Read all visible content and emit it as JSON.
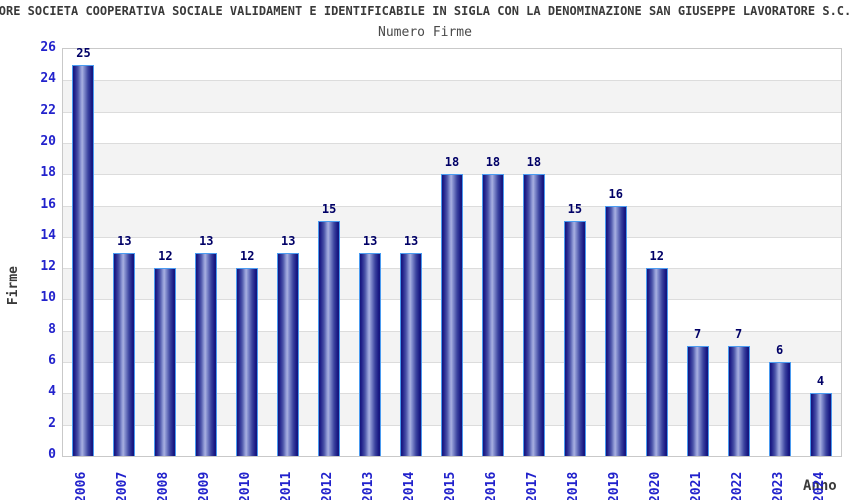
{
  "chart_data": {
    "type": "bar",
    "title": "ATORE SOCIETA COOPERATIVA SOCIALE VALIDAMENT E IDENTIFICABILE IN SIGLA CON LA DENOMINAZIONE SAN GIUSEPPE LAVORATORE S.C.S.",
    "subtitle": "Numero Firme",
    "xlabel": "Anno",
    "ylabel": "Firme",
    "categories": [
      "2006",
      "2007",
      "2008",
      "2009",
      "2010",
      "2011",
      "2012",
      "2013",
      "2014",
      "2015",
      "2016",
      "2017",
      "2018",
      "2019",
      "2020",
      "2021",
      "2022",
      "2023",
      "2024"
    ],
    "values": [
      25,
      13,
      12,
      13,
      12,
      13,
      15,
      13,
      13,
      18,
      18,
      18,
      15,
      16,
      12,
      7,
      7,
      6,
      4
    ],
    "ylim": [
      0,
      26
    ],
    "yticks": [
      0,
      2,
      4,
      6,
      8,
      10,
      12,
      14,
      16,
      18,
      20,
      22,
      24,
      26
    ],
    "grid": true,
    "alternating_bands": true,
    "legend_position": "none",
    "colors": {
      "tick_label": "#2222cc",
      "value_label": "#000066",
      "bar_dark": "#15157b",
      "bar_light": "#a8b0e0",
      "bar_border": "#4a9bf0",
      "band": "#f3f3f3",
      "grid": "#dcdcdc",
      "frame": "#c9c9c9",
      "text": "#3a3a3a"
    }
  }
}
